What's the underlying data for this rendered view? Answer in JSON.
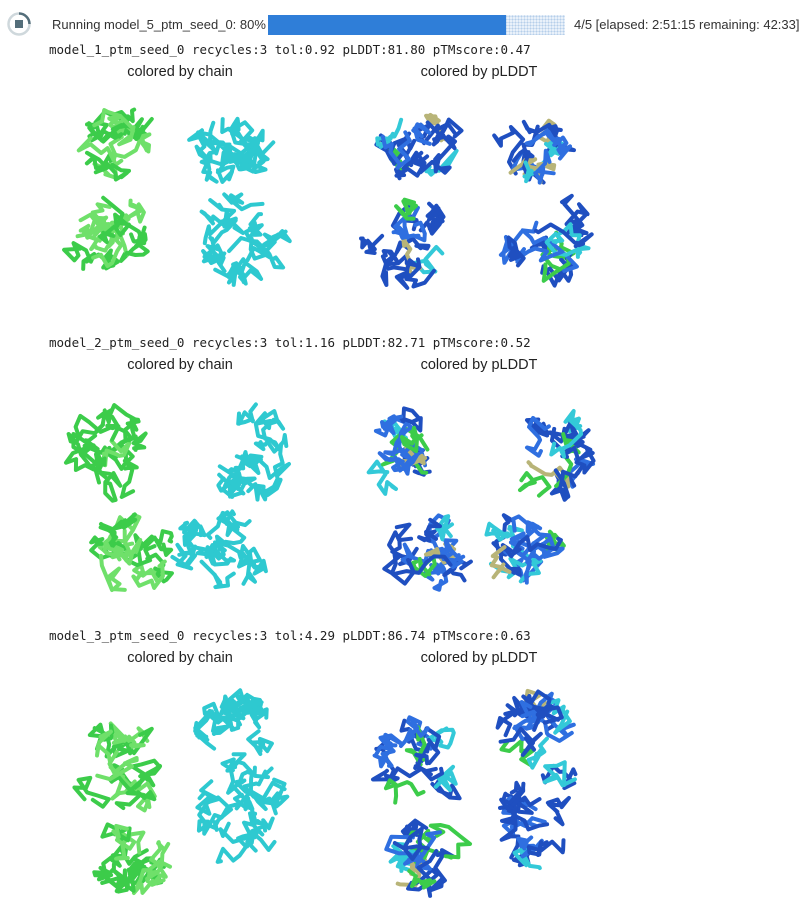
{
  "progress": {
    "label": "Running model_5_ptm_seed_0: 80%",
    "value_fraction": 0.8,
    "count_text": "4/5 [elapsed: 2:51:15 remaining: 42:33]",
    "fill_color": "#2f7ed8"
  },
  "models": [
    {
      "stats": "model_1_ptm_seed_0 recycles:3 tol:0.92 pLDDT:81.80 pTMscore:0.47",
      "chain_title": "colored by chain",
      "plddt_title": "colored by pLDDT"
    },
    {
      "stats": "model_2_ptm_seed_0 recycles:3 tol:1.16 pLDDT:82.71 pTMscore:0.52",
      "chain_title": "colored by chain",
      "plddt_title": "colored by pLDDT"
    },
    {
      "stats": "model_3_ptm_seed_0 recycles:3 tol:4.29 pLDDT:86.74 pTMscore:0.63",
      "chain_title": "colored by chain",
      "plddt_title": "colored by pLDDT"
    }
  ],
  "colors": {
    "chain_a": "#3ccc4a",
    "chain_a_light": "#6fe06a",
    "chain_b": "#2ec9d0",
    "plddt_very_high": "#1f4fc0",
    "plddt_high": "#2f6fe0",
    "plddt_mid": "#33c9d8",
    "plddt_low": "#3ccc4a",
    "plddt_very_low": "#b8b478"
  }
}
